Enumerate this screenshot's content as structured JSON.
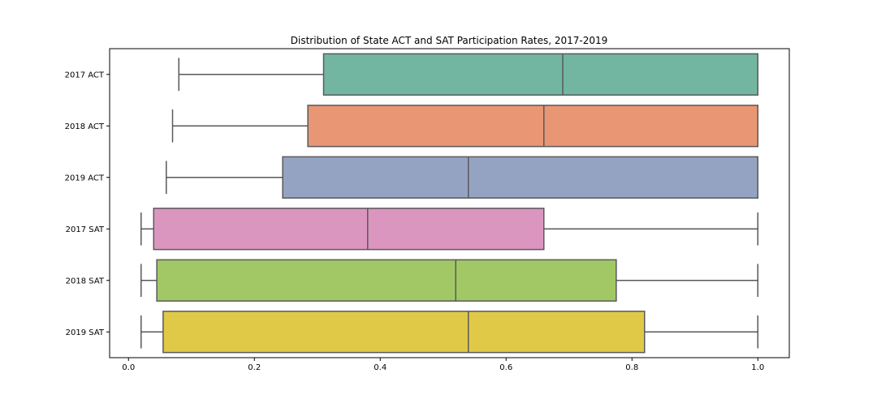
{
  "chart_data": {
    "type": "boxplot",
    "orientation": "horizontal",
    "title": "Distribution of State ACT and SAT Participation Rates, 2017-2019",
    "xlabel": "",
    "ylabel": "",
    "xlim": [
      -0.03,
      1.05
    ],
    "xticks": [
      0.0,
      0.2,
      0.4,
      0.6,
      0.8,
      1.0
    ],
    "xtick_labels": [
      "0.0",
      "0.2",
      "0.4",
      "0.6",
      "0.8",
      "1.0"
    ],
    "grid": false,
    "legend": "none",
    "categories": [
      "2017 ACT",
      "2018 ACT",
      "2019 ACT",
      "2017 SAT",
      "2018 SAT",
      "2019 SAT"
    ],
    "boxes": [
      {
        "label": "2017 ACT",
        "whisker_low": 0.08,
        "q1": 0.31,
        "median": 0.69,
        "q3": 1.0,
        "whisker_high": 1.0,
        "color": "#72b6a1"
      },
      {
        "label": "2018 ACT",
        "whisker_low": 0.07,
        "q1": 0.285,
        "median": 0.66,
        "q3": 1.0,
        "whisker_high": 1.0,
        "color": "#e99675"
      },
      {
        "label": "2019 ACT",
        "whisker_low": 0.06,
        "q1": 0.245,
        "median": 0.54,
        "q3": 1.0,
        "whisker_high": 1.0,
        "color": "#95a3c3"
      },
      {
        "label": "2017 SAT",
        "whisker_low": 0.02,
        "q1": 0.04,
        "median": 0.38,
        "q3": 0.66,
        "whisker_high": 1.0,
        "color": "#db96c0"
      },
      {
        "label": "2018 SAT",
        "whisker_low": 0.02,
        "q1": 0.045,
        "median": 0.52,
        "q3": 0.775,
        "whisker_high": 1.0,
        "color": "#a2c865"
      },
      {
        "label": "2019 SAT",
        "whisker_low": 0.02,
        "q1": 0.055,
        "median": 0.54,
        "q3": 0.82,
        "whisker_high": 1.0,
        "color": "#e1c948"
      }
    ],
    "line_color": "#595959"
  }
}
